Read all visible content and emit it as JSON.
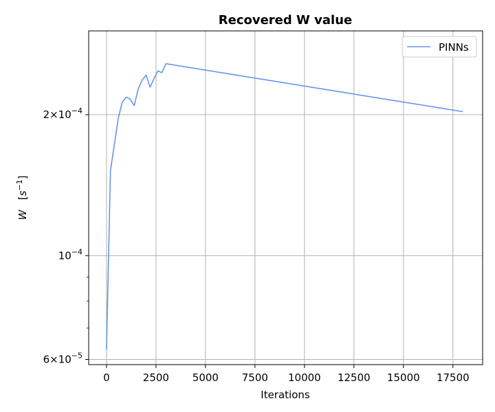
{
  "chart_data": {
    "type": "line",
    "title": "Recovered W value",
    "xlabel": "Iterations",
    "ylabel_symbol": "W",
    "ylabel_unit_base": "s",
    "ylabel_unit_exp": "−1",
    "xlim": [
      -900,
      19000
    ],
    "ylim": [
      5.85e-05,
      0.000302
    ],
    "yscale": "log",
    "grid": true,
    "legend_position": "top-right",
    "x_ticks": [
      0,
      2500,
      5000,
      7500,
      10000,
      12500,
      15000,
      17500
    ],
    "x_tick_labels": [
      "0",
      "2500",
      "5000",
      "7500",
      "10000",
      "12500",
      "15000",
      "17500"
    ],
    "y_major_ticks": [
      {
        "value": 6e-05,
        "mantissa": "6",
        "times": "×",
        "base": "10",
        "exp": "−5"
      },
      {
        "value": 0.0001,
        "mantissa": "",
        "times": "",
        "base": "10",
        "exp": "−4"
      },
      {
        "value": 0.0002,
        "mantissa": "2",
        "times": "×",
        "base": "10",
        "exp": "−4"
      }
    ],
    "y_minor_ticks": [
      7e-05,
      8e-05,
      9e-05
    ],
    "series": [
      {
        "name": "PINNs",
        "color": "#6495ED",
        "x": [
          0,
          200,
          400,
          600,
          800,
          1000,
          1200,
          1400,
          1600,
          1800,
          2000,
          2200,
          2400,
          2600,
          2800,
          3000,
          18000
        ],
        "y": [
          6.3e-05,
          0.000152,
          0.000173,
          0.000197,
          0.000213,
          0.000218,
          0.000216,
          0.000209,
          0.000227,
          0.000237,
          0.000243,
          0.000229,
          0.000239,
          0.000248,
          0.000246,
          0.000257,
          0.000203
        ]
      }
    ]
  }
}
